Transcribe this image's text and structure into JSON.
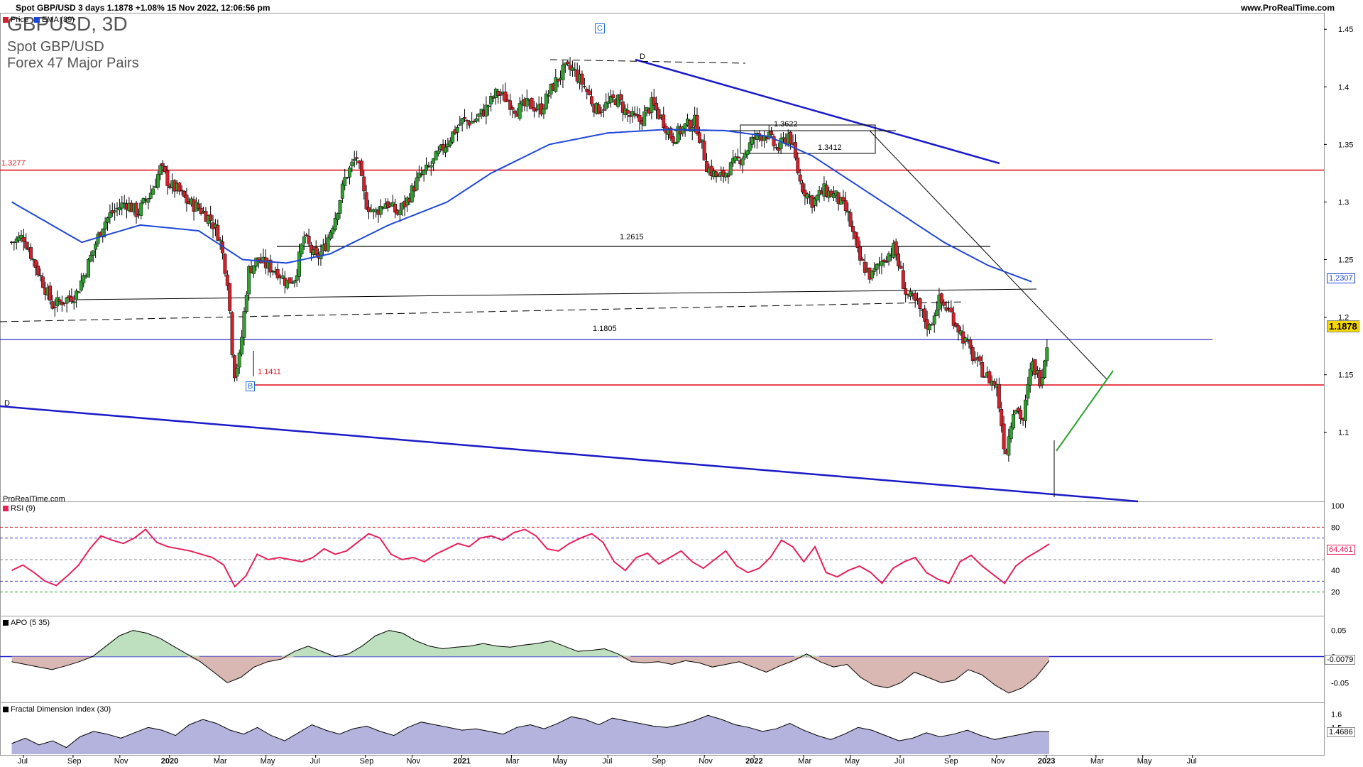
{
  "header": {
    "left": "Spot GBP/USD 3 days 1.1878 +1.08% 15 Nov 2022, 12:06:56 pm",
    "right": "www.ProRealTime.com"
  },
  "title": {
    "symbol": "GBPUSD, 3D",
    "name": "Spot GBP/USD",
    "group": "Forex 47 Major Pairs"
  },
  "watermark": "ProRealTime.com",
  "legend": {
    "price": "Price",
    "ema": "EMA (89)",
    "rsi": "RSI (9)",
    "apo": "APO (5 35)",
    "fdi": "Fractal Dimension Index (30)"
  },
  "colors": {
    "up": "#2ea12e",
    "down": "#d3202a",
    "ema": "#1f47d6",
    "resistance": "#e0161e",
    "support_blue": "#1a1ac8",
    "rsi": "#e8205a",
    "apo_pos": "#bfe0bf",
    "apo_neg": "#d9b7b2",
    "fdi_fill": "#b3b3de",
    "triangle_green": "#2ea12e"
  },
  "annotations": {
    "level_13277": "1.3277",
    "level_12615": "1.2615",
    "level_11805": "1.1805",
    "level_11411": "1.1411",
    "level_13622": "1.3622",
    "level_13412": "1.3412",
    "wave_c": "C",
    "wave_b": "B",
    "wave_d_top": "D",
    "wave_d_left": "D"
  },
  "price_tags": {
    "ema": "1.2307",
    "last": "1.1878",
    "rsi": "64.461",
    "apo": "-0.0079",
    "fdi": "1.4686"
  },
  "chart_data": [
    {
      "type": "candlestick",
      "title": "GBPUSD, 3D",
      "yticks": [
        "1.45",
        "1.4",
        "1.35",
        "1.3",
        "1.25",
        "1.2",
        "1.15",
        "1.1"
      ],
      "ylim": [
        1.04,
        1.46
      ],
      "xticks": [
        "Jul",
        "Sep",
        "Nov",
        "2020",
        "Mar",
        "May",
        "Jul",
        "Sep",
        "Nov",
        "2021",
        "Mar",
        "May",
        "Jul",
        "Sep",
        "Nov",
        "2022",
        "Mar",
        "May",
        "Jul",
        "Sep",
        "Nov",
        "2023",
        "Mar",
        "May",
        "Jul"
      ],
      "close_path": [
        [
          2019.46,
          1.265
        ],
        [
          2019.5,
          1.27
        ],
        [
          2019.55,
          1.24
        ],
        [
          2019.6,
          1.21
        ],
        [
          2019.64,
          1.215
        ],
        [
          2019.68,
          1.22
        ],
        [
          2019.72,
          1.245
        ],
        [
          2019.77,
          1.28
        ],
        [
          2019.8,
          1.29
        ],
        [
          2019.85,
          1.3
        ],
        [
          2019.89,
          1.29
        ],
        [
          2019.94,
          1.31
        ],
        [
          2019.97,
          1.33
        ],
        [
          2020.0,
          1.315
        ],
        [
          2020.03,
          1.31
        ],
        [
          2020.06,
          1.3
        ],
        [
          2020.1,
          1.295
        ],
        [
          2020.14,
          1.285
        ],
        [
          2020.17,
          1.27
        ],
        [
          2020.2,
          1.23
        ],
        [
          2020.22,
          1.15
        ],
        [
          2020.24,
          1.165
        ],
        [
          2020.27,
          1.24
        ],
        [
          2020.3,
          1.25
        ],
        [
          2020.33,
          1.245
        ],
        [
          2020.37,
          1.24
        ],
        [
          2020.4,
          1.23
        ],
        [
          2020.43,
          1.235
        ],
        [
          2020.46,
          1.27
        ],
        [
          2020.5,
          1.25
        ],
        [
          2020.53,
          1.26
        ],
        [
          2020.57,
          1.29
        ],
        [
          2020.6,
          1.32
        ],
        [
          2020.64,
          1.34
        ],
        [
          2020.67,
          1.3
        ],
        [
          2020.7,
          1.29
        ],
        [
          2020.74,
          1.3
        ],
        [
          2020.78,
          1.29
        ],
        [
          2020.81,
          1.3
        ],
        [
          2020.85,
          1.32
        ],
        [
          2020.89,
          1.33
        ],
        [
          2020.93,
          1.345
        ],
        [
          2020.97,
          1.36
        ],
        [
          2021.0,
          1.37
        ],
        [
          2021.04,
          1.37
        ],
        [
          2021.08,
          1.38
        ],
        [
          2021.12,
          1.395
        ],
        [
          2021.15,
          1.39
        ],
        [
          2021.19,
          1.38
        ],
        [
          2021.23,
          1.385
        ],
        [
          2021.27,
          1.38
        ],
        [
          2021.31,
          1.4
        ],
        [
          2021.35,
          1.415
        ],
        [
          2021.38,
          1.415
        ],
        [
          2021.42,
          1.4
        ],
        [
          2021.46,
          1.38
        ],
        [
          2021.5,
          1.385
        ],
        [
          2021.53,
          1.39
        ],
        [
          2021.57,
          1.375
        ],
        [
          2021.61,
          1.37
        ],
        [
          2021.65,
          1.385
        ],
        [
          2021.69,
          1.37
        ],
        [
          2021.72,
          1.355
        ],
        [
          2021.76,
          1.365
        ],
        [
          2021.8,
          1.37
        ],
        [
          2021.84,
          1.33
        ],
        [
          2021.88,
          1.32
        ],
        [
          2021.92,
          1.33
        ],
        [
          2021.96,
          1.34
        ],
        [
          2022.0,
          1.355
        ],
        [
          2022.04,
          1.36
        ],
        [
          2022.08,
          1.345
        ],
        [
          2022.12,
          1.36
        ],
        [
          2022.16,
          1.315
        ],
        [
          2022.2,
          1.3
        ],
        [
          2022.24,
          1.31
        ],
        [
          2022.28,
          1.305
        ],
        [
          2022.32,
          1.29
        ],
        [
          2022.36,
          1.25
        ],
        [
          2022.4,
          1.235
        ],
        [
          2022.44,
          1.25
        ],
        [
          2022.48,
          1.26
        ],
        [
          2022.52,
          1.22
        ],
        [
          2022.56,
          1.21
        ],
        [
          2022.6,
          1.19
        ],
        [
          2022.63,
          1.215
        ],
        [
          2022.67,
          1.205
        ],
        [
          2022.71,
          1.185
        ],
        [
          2022.75,
          1.165
        ],
        [
          2022.79,
          1.15
        ],
        [
          2022.83,
          1.14
        ],
        [
          2022.86,
          1.08
        ],
        [
          2022.89,
          1.125
        ],
        [
          2022.92,
          1.11
        ],
        [
          2022.95,
          1.16
        ],
        [
          2022.98,
          1.145
        ],
        [
          2023.01,
          1.1878
        ]
      ],
      "ema_path": [
        [
          2019.46,
          1.3
        ],
        [
          2019.7,
          1.265
        ],
        [
          2019.9,
          1.28
        ],
        [
          2020.1,
          1.275
        ],
        [
          2020.25,
          1.25
        ],
        [
          2020.4,
          1.247
        ],
        [
          2020.55,
          1.255
        ],
        [
          2020.75,
          1.28
        ],
        [
          2020.95,
          1.3
        ],
        [
          2021.1,
          1.325
        ],
        [
          2021.3,
          1.35
        ],
        [
          2021.5,
          1.36
        ],
        [
          2021.7,
          1.363
        ],
        [
          2021.9,
          1.362
        ],
        [
          2022.05,
          1.357
        ],
        [
          2022.2,
          1.34
        ],
        [
          2022.35,
          1.315
        ],
        [
          2022.5,
          1.29
        ],
        [
          2022.65,
          1.265
        ],
        [
          2022.8,
          1.245
        ],
        [
          2022.95,
          1.2307
        ]
      ],
      "levels": [
        1.3277,
        1.2615,
        1.1805,
        1.1411
      ]
    },
    {
      "type": "line",
      "title": "RSI (9)",
      "yticks": [
        "100",
        "80",
        "60",
        "40",
        "20"
      ],
      "ylim": [
        0,
        100
      ],
      "reference_lines": [
        80,
        70,
        50,
        30,
        20
      ],
      "series": [
        {
          "name": "RSI (9)",
          "values": [
            40,
            45,
            38,
            30,
            26,
            35,
            45,
            60,
            72,
            68,
            65,
            70,
            78,
            66,
            62,
            60,
            58,
            55,
            52,
            45,
            25,
            35,
            55,
            50,
            52,
            50,
            48,
            52,
            60,
            55,
            58,
            66,
            74,
            70,
            55,
            50,
            52,
            48,
            55,
            60,
            65,
            62,
            70,
            72,
            68,
            75,
            78,
            72,
            60,
            58,
            65,
            70,
            74,
            66,
            48,
            40,
            52,
            56,
            46,
            52,
            58,
            48,
            42,
            50,
            58,
            44,
            38,
            42,
            52,
            68,
            62,
            48,
            62,
            38,
            34,
            40,
            44,
            38,
            28,
            42,
            48,
            52,
            38,
            32,
            28,
            48,
            54,
            44,
            36,
            28,
            44,
            52,
            58,
            64.461
          ]
        }
      ]
    },
    {
      "type": "area",
      "title": "APO (5 35)",
      "yticks": [
        "0.05",
        "0",
        "-0.05"
      ],
      "ylim": [
        -0.085,
        0.07
      ],
      "series": [
        {
          "name": "APO (5 35)",
          "values": [
            -0.01,
            -0.015,
            -0.02,
            -0.025,
            -0.018,
            -0.01,
            0.0,
            0.02,
            0.04,
            0.05,
            0.045,
            0.035,
            0.02,
            0.005,
            -0.01,
            -0.03,
            -0.05,
            -0.04,
            -0.02,
            -0.01,
            -0.005,
            0.01,
            0.02,
            0.01,
            0.0,
            0.005,
            0.02,
            0.04,
            0.05,
            0.045,
            0.03,
            0.02,
            0.015,
            0.018,
            0.02,
            0.025,
            0.02,
            0.018,
            0.022,
            0.025,
            0.03,
            0.02,
            0.01,
            0.012,
            0.015,
            0.005,
            -0.01,
            -0.012,
            -0.01,
            -0.015,
            -0.008,
            -0.012,
            -0.02,
            -0.015,
            -0.01,
            -0.02,
            -0.03,
            -0.018,
            -0.008,
            0.005,
            -0.01,
            -0.02,
            -0.015,
            -0.04,
            -0.055,
            -0.06,
            -0.05,
            -0.03,
            -0.04,
            -0.05,
            -0.045,
            -0.025,
            -0.035,
            -0.055,
            -0.07,
            -0.06,
            -0.04,
            -0.0079
          ]
        }
      ]
    },
    {
      "type": "area",
      "title": "Fractal Dimension Index (30)",
      "yticks": [
        "1.6",
        "1.5"
      ],
      "ylim": [
        1.3,
        1.65
      ],
      "series": [
        {
          "name": "Fractal Dimension Index (30)",
          "values": [
            1.38,
            1.42,
            1.37,
            1.4,
            1.35,
            1.43,
            1.47,
            1.45,
            1.42,
            1.46,
            1.5,
            1.48,
            1.44,
            1.52,
            1.56,
            1.53,
            1.48,
            1.45,
            1.5,
            1.44,
            1.4,
            1.46,
            1.52,
            1.48,
            1.45,
            1.49,
            1.51,
            1.47,
            1.44,
            1.5,
            1.54,
            1.52,
            1.5,
            1.48,
            1.49,
            1.47,
            1.45,
            1.5,
            1.52,
            1.49,
            1.53,
            1.58,
            1.56,
            1.52,
            1.57,
            1.55,
            1.53,
            1.51,
            1.5,
            1.52,
            1.55,
            1.59,
            1.56,
            1.52,
            1.5,
            1.47,
            1.49,
            1.53,
            1.48,
            1.44,
            1.41,
            1.45,
            1.5,
            1.48,
            1.44,
            1.4,
            1.42,
            1.46,
            1.43,
            1.45,
            1.48,
            1.44,
            1.41,
            1.43,
            1.45,
            1.47,
            1.4686
          ]
        }
      ]
    }
  ]
}
